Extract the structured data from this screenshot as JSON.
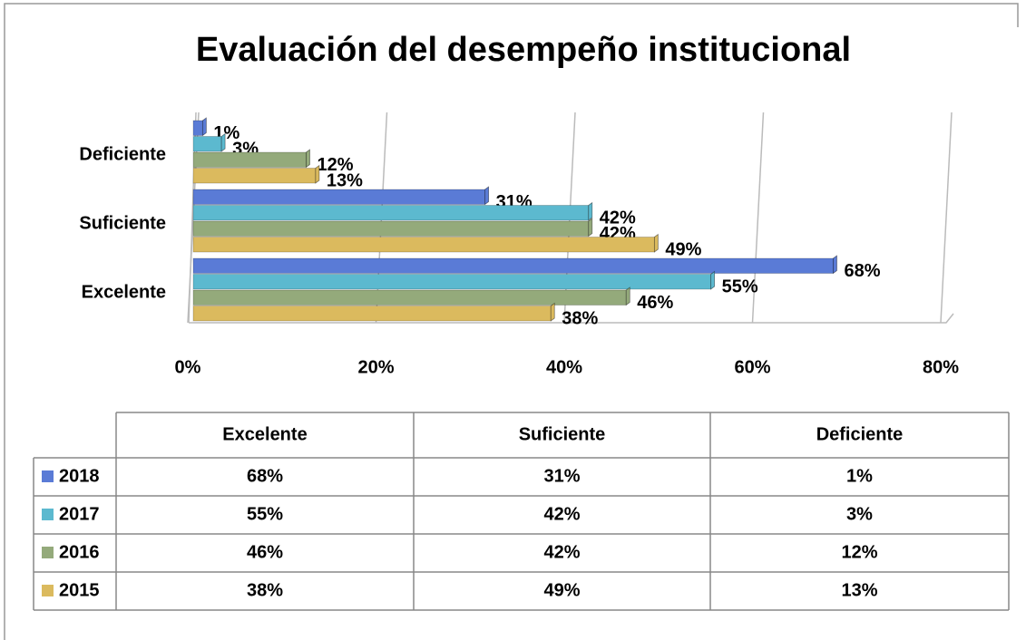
{
  "chart_data": {
    "type": "bar",
    "orientation": "horizontal",
    "title": "Evaluación del desempeño institucional",
    "categories": [
      "Excelente",
      "Suficiente",
      "Deficiente"
    ],
    "series": [
      {
        "name": "2018",
        "color": "#5a7bd6",
        "values": [
          68,
          31,
          1
        ],
        "value_labels": [
          "68%",
          "31%",
          "1%"
        ]
      },
      {
        "name": "2017",
        "color": "#5cb9cf",
        "values": [
          55,
          42,
          3
        ],
        "value_labels": [
          "55%",
          "42%",
          "3%"
        ]
      },
      {
        "name": "2016",
        "color": "#94aa7b",
        "values": [
          46,
          42,
          12
        ],
        "value_labels": [
          "46%",
          "42%",
          "12%"
        ]
      },
      {
        "name": "2015",
        "color": "#dbba5e",
        "values": [
          38,
          49,
          13
        ],
        "value_labels": [
          "38%",
          "49%",
          "13%"
        ]
      }
    ],
    "xlim": [
      0,
      80
    ],
    "xticks": [
      {
        "value": 0,
        "label": "0%"
      },
      {
        "value": 20,
        "label": "20%"
      },
      {
        "value": 40,
        "label": "40%"
      },
      {
        "value": 60,
        "label": "60%"
      },
      {
        "value": 80,
        "label": "80%"
      }
    ],
    "grid": true,
    "data_table": true
  }
}
